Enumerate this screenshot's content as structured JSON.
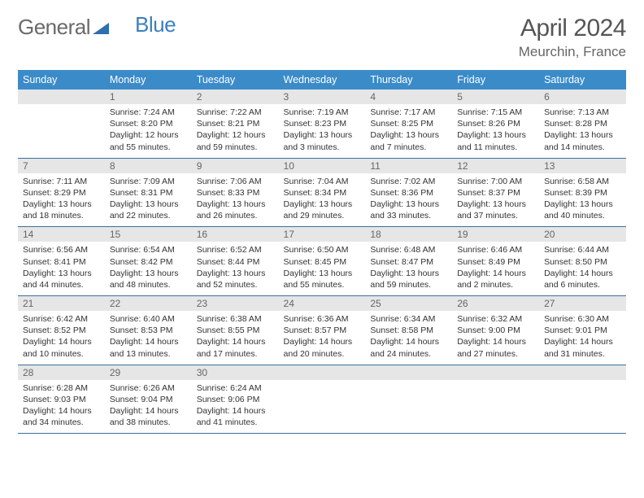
{
  "brand": {
    "part1": "General",
    "part2": "Blue"
  },
  "title": "April 2024",
  "location": "Meurchin, France",
  "header_color": "#3b8bc9",
  "row_border_color": "#3b6fa0",
  "daynum_bg": "#e6e6e6",
  "weekdays": [
    "Sunday",
    "Monday",
    "Tuesday",
    "Wednesday",
    "Thursday",
    "Friday",
    "Saturday"
  ],
  "weeks": [
    [
      null,
      {
        "n": "1",
        "sr": "Sunrise: 7:24 AM",
        "ss": "Sunset: 8:20 PM",
        "d1": "Daylight: 12 hours",
        "d2": "and 55 minutes."
      },
      {
        "n": "2",
        "sr": "Sunrise: 7:22 AM",
        "ss": "Sunset: 8:21 PM",
        "d1": "Daylight: 12 hours",
        "d2": "and 59 minutes."
      },
      {
        "n": "3",
        "sr": "Sunrise: 7:19 AM",
        "ss": "Sunset: 8:23 PM",
        "d1": "Daylight: 13 hours",
        "d2": "and 3 minutes."
      },
      {
        "n": "4",
        "sr": "Sunrise: 7:17 AM",
        "ss": "Sunset: 8:25 PM",
        "d1": "Daylight: 13 hours",
        "d2": "and 7 minutes."
      },
      {
        "n": "5",
        "sr": "Sunrise: 7:15 AM",
        "ss": "Sunset: 8:26 PM",
        "d1": "Daylight: 13 hours",
        "d2": "and 11 minutes."
      },
      {
        "n": "6",
        "sr": "Sunrise: 7:13 AM",
        "ss": "Sunset: 8:28 PM",
        "d1": "Daylight: 13 hours",
        "d2": "and 14 minutes."
      }
    ],
    [
      {
        "n": "7",
        "sr": "Sunrise: 7:11 AM",
        "ss": "Sunset: 8:29 PM",
        "d1": "Daylight: 13 hours",
        "d2": "and 18 minutes."
      },
      {
        "n": "8",
        "sr": "Sunrise: 7:09 AM",
        "ss": "Sunset: 8:31 PM",
        "d1": "Daylight: 13 hours",
        "d2": "and 22 minutes."
      },
      {
        "n": "9",
        "sr": "Sunrise: 7:06 AM",
        "ss": "Sunset: 8:33 PM",
        "d1": "Daylight: 13 hours",
        "d2": "and 26 minutes."
      },
      {
        "n": "10",
        "sr": "Sunrise: 7:04 AM",
        "ss": "Sunset: 8:34 PM",
        "d1": "Daylight: 13 hours",
        "d2": "and 29 minutes."
      },
      {
        "n": "11",
        "sr": "Sunrise: 7:02 AM",
        "ss": "Sunset: 8:36 PM",
        "d1": "Daylight: 13 hours",
        "d2": "and 33 minutes."
      },
      {
        "n": "12",
        "sr": "Sunrise: 7:00 AM",
        "ss": "Sunset: 8:37 PM",
        "d1": "Daylight: 13 hours",
        "d2": "and 37 minutes."
      },
      {
        "n": "13",
        "sr": "Sunrise: 6:58 AM",
        "ss": "Sunset: 8:39 PM",
        "d1": "Daylight: 13 hours",
        "d2": "and 40 minutes."
      }
    ],
    [
      {
        "n": "14",
        "sr": "Sunrise: 6:56 AM",
        "ss": "Sunset: 8:41 PM",
        "d1": "Daylight: 13 hours",
        "d2": "and 44 minutes."
      },
      {
        "n": "15",
        "sr": "Sunrise: 6:54 AM",
        "ss": "Sunset: 8:42 PM",
        "d1": "Daylight: 13 hours",
        "d2": "and 48 minutes."
      },
      {
        "n": "16",
        "sr": "Sunrise: 6:52 AM",
        "ss": "Sunset: 8:44 PM",
        "d1": "Daylight: 13 hours",
        "d2": "and 52 minutes."
      },
      {
        "n": "17",
        "sr": "Sunrise: 6:50 AM",
        "ss": "Sunset: 8:45 PM",
        "d1": "Daylight: 13 hours",
        "d2": "and 55 minutes."
      },
      {
        "n": "18",
        "sr": "Sunrise: 6:48 AM",
        "ss": "Sunset: 8:47 PM",
        "d1": "Daylight: 13 hours",
        "d2": "and 59 minutes."
      },
      {
        "n": "19",
        "sr": "Sunrise: 6:46 AM",
        "ss": "Sunset: 8:49 PM",
        "d1": "Daylight: 14 hours",
        "d2": "and 2 minutes."
      },
      {
        "n": "20",
        "sr": "Sunrise: 6:44 AM",
        "ss": "Sunset: 8:50 PM",
        "d1": "Daylight: 14 hours",
        "d2": "and 6 minutes."
      }
    ],
    [
      {
        "n": "21",
        "sr": "Sunrise: 6:42 AM",
        "ss": "Sunset: 8:52 PM",
        "d1": "Daylight: 14 hours",
        "d2": "and 10 minutes."
      },
      {
        "n": "22",
        "sr": "Sunrise: 6:40 AM",
        "ss": "Sunset: 8:53 PM",
        "d1": "Daylight: 14 hours",
        "d2": "and 13 minutes."
      },
      {
        "n": "23",
        "sr": "Sunrise: 6:38 AM",
        "ss": "Sunset: 8:55 PM",
        "d1": "Daylight: 14 hours",
        "d2": "and 17 minutes."
      },
      {
        "n": "24",
        "sr": "Sunrise: 6:36 AM",
        "ss": "Sunset: 8:57 PM",
        "d1": "Daylight: 14 hours",
        "d2": "and 20 minutes."
      },
      {
        "n": "25",
        "sr": "Sunrise: 6:34 AM",
        "ss": "Sunset: 8:58 PM",
        "d1": "Daylight: 14 hours",
        "d2": "and 24 minutes."
      },
      {
        "n": "26",
        "sr": "Sunrise: 6:32 AM",
        "ss": "Sunset: 9:00 PM",
        "d1": "Daylight: 14 hours",
        "d2": "and 27 minutes."
      },
      {
        "n": "27",
        "sr": "Sunrise: 6:30 AM",
        "ss": "Sunset: 9:01 PM",
        "d1": "Daylight: 14 hours",
        "d2": "and 31 minutes."
      }
    ],
    [
      {
        "n": "28",
        "sr": "Sunrise: 6:28 AM",
        "ss": "Sunset: 9:03 PM",
        "d1": "Daylight: 14 hours",
        "d2": "and 34 minutes."
      },
      {
        "n": "29",
        "sr": "Sunrise: 6:26 AM",
        "ss": "Sunset: 9:04 PM",
        "d1": "Daylight: 14 hours",
        "d2": "and 38 minutes."
      },
      {
        "n": "30",
        "sr": "Sunrise: 6:24 AM",
        "ss": "Sunset: 9:06 PM",
        "d1": "Daylight: 14 hours",
        "d2": "and 41 minutes."
      },
      null,
      null,
      null,
      null
    ]
  ]
}
